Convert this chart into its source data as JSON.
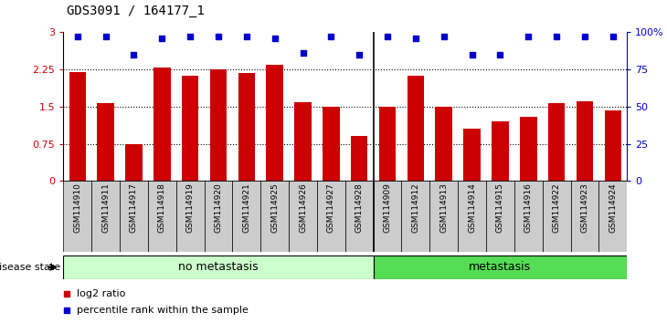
{
  "title": "GDS3091 / 164177_1",
  "samples": [
    "GSM114910",
    "GSM114911",
    "GSM114917",
    "GSM114918",
    "GSM114919",
    "GSM114920",
    "GSM114921",
    "GSM114925",
    "GSM114926",
    "GSM114927",
    "GSM114928",
    "GSM114909",
    "GSM114912",
    "GSM114913",
    "GSM114914",
    "GSM114915",
    "GSM114916",
    "GSM114922",
    "GSM114923",
    "GSM114924"
  ],
  "log2_ratio": [
    2.19,
    1.57,
    0.75,
    2.28,
    2.12,
    2.25,
    2.18,
    2.35,
    1.58,
    1.5,
    0.9,
    1.5,
    2.13,
    1.5,
    1.05,
    1.2,
    1.3,
    1.57,
    1.6,
    1.43
  ],
  "percentile": [
    97,
    97,
    85,
    96,
    97,
    97,
    97,
    96,
    86,
    97,
    85,
    97,
    96,
    97,
    85,
    85,
    97,
    97,
    97,
    97
  ],
  "no_metastasis_count": 11,
  "metastasis_count": 9,
  "bar_color": "#cc0000",
  "dot_color": "#0000cc",
  "ylim_left": [
    0,
    3
  ],
  "yticks_left": [
    0,
    0.75,
    1.5,
    2.25,
    3
  ],
  "ytick_labels_left": [
    "0",
    "0.75",
    "1.5",
    "2.25",
    "3"
  ],
  "ylim_right": [
    0,
    100
  ],
  "yticks_right": [
    0,
    25,
    50,
    75,
    100
  ],
  "ytick_labels_right": [
    "0",
    "25",
    "50",
    "75",
    "100%"
  ],
  "no_metastasis_color": "#ccffcc",
  "metastasis_color": "#55dd55",
  "tick_bg_color": "#cccccc",
  "grid_color": "#555555",
  "hline_color": "#000000"
}
